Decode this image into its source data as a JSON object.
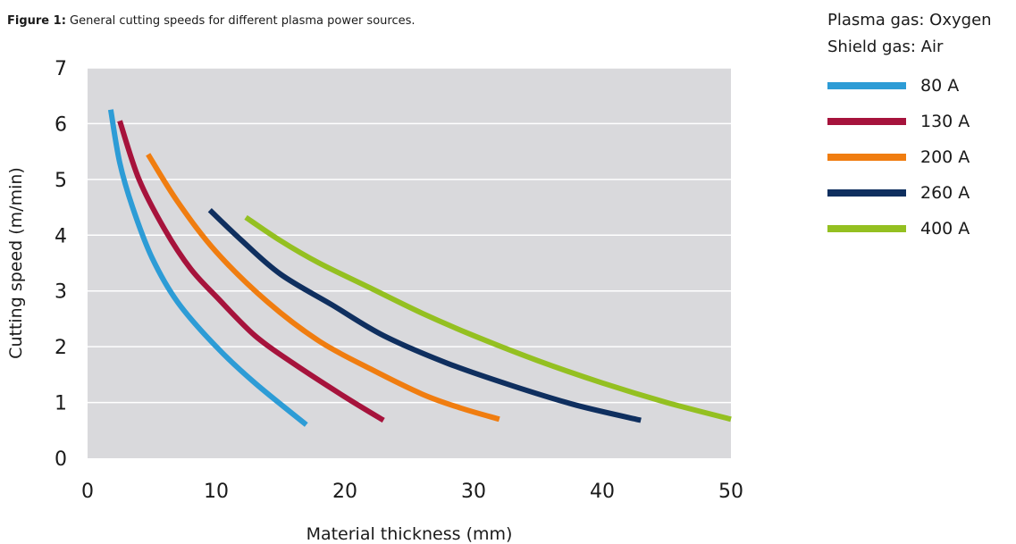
{
  "caption": {
    "prefix": "Figure 1:",
    "text": "General cutting speeds for different plasma power sources."
  },
  "legend_notes": [
    "Plasma gas: Oxygen",
    "Shield gas: Air"
  ],
  "chart_data": {
    "type": "line",
    "title": "",
    "xlabel": "Material thickness (mm)",
    "ylabel": "Cutting speed (m/min)",
    "xlim": [
      0,
      50
    ],
    "ylim": [
      0,
      7
    ],
    "xticks": [
      0,
      10,
      20,
      30,
      40,
      50
    ],
    "yticks": [
      0,
      1,
      2,
      3,
      4,
      5,
      6,
      7
    ],
    "grid": "horizontal",
    "legend_position": "right",
    "series": [
      {
        "name": "80 A",
        "color": "#2d9cd6",
        "x": [
          1.8,
          2.5,
          3.5,
          5,
          7,
          10,
          13,
          17
        ],
        "y": [
          6.25,
          5.3,
          4.5,
          3.6,
          2.8,
          2.0,
          1.35,
          0.6
        ]
      },
      {
        "name": "130 A",
        "color": "#a6133c",
        "x": [
          2.5,
          4,
          6,
          8,
          10,
          13,
          16,
          20,
          23
        ],
        "y": [
          6.05,
          5.0,
          4.1,
          3.4,
          2.9,
          2.2,
          1.7,
          1.1,
          0.68
        ]
      },
      {
        "name": "200 A",
        "color": "#f07d10",
        "x": [
          4.7,
          7,
          10,
          14,
          18,
          22,
          26,
          29,
          32
        ],
        "y": [
          5.45,
          4.6,
          3.7,
          2.8,
          2.1,
          1.6,
          1.15,
          0.9,
          0.7
        ]
      },
      {
        "name": "260 A",
        "color": "#0f2f5f",
        "x": [
          9.5,
          12,
          15,
          19,
          23,
          28,
          33,
          38,
          43
        ],
        "y": [
          4.45,
          3.9,
          3.3,
          2.75,
          2.2,
          1.7,
          1.3,
          0.95,
          0.68
        ]
      },
      {
        "name": "400 A",
        "color": "#94c021",
        "x": [
          12.3,
          15,
          18,
          22,
          26,
          30,
          35,
          40,
          45,
          50
        ],
        "y": [
          4.32,
          3.9,
          3.5,
          3.05,
          2.6,
          2.2,
          1.75,
          1.35,
          1.0,
          0.7
        ]
      }
    ]
  }
}
